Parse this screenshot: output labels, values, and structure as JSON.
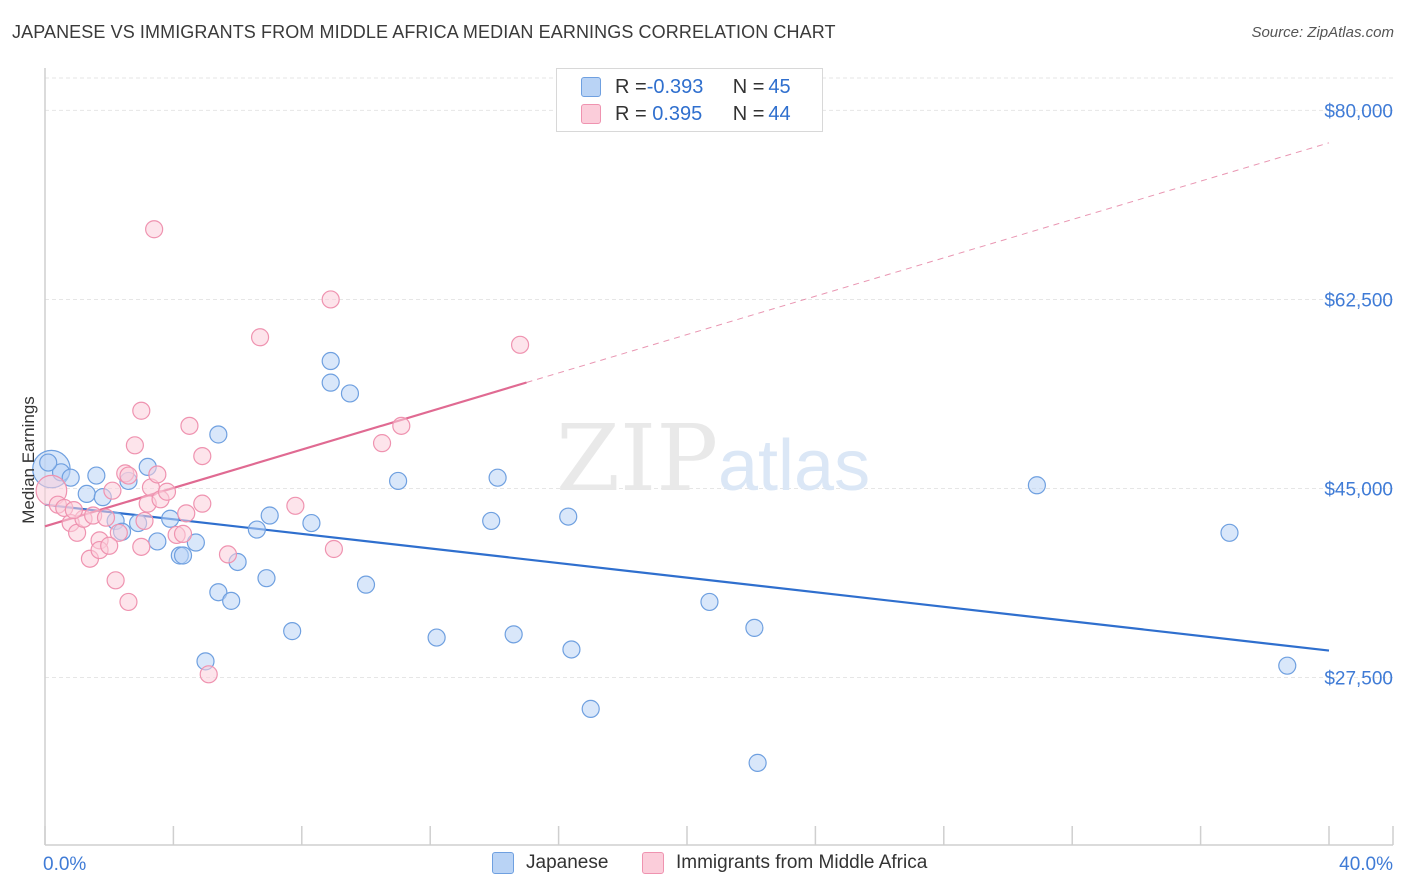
{
  "title": "JAPANESE VS IMMIGRANTS FROM MIDDLE AFRICA MEDIAN EARNINGS CORRELATION CHART",
  "source": "Source: ZipAtlas.com",
  "watermark": {
    "zip": "ZIP",
    "atlas": "atlas"
  },
  "colors": {
    "blue_fill": "#b9d3f5",
    "blue_stroke": "#6fa0e0",
    "blue_line": "#2f6fce",
    "pink_fill": "#fbcdda",
    "pink_stroke": "#ef93b0",
    "pink_line": "#e06a92",
    "axis_text": "#3f7bd6",
    "grid": "#e6e6e6"
  },
  "legend": {
    "rows": [
      {
        "r_label": "R = ",
        "r_value": "-0.393",
        "n_label": "N = ",
        "n_value": "45"
      },
      {
        "r_label": "R = ",
        "r_value": " 0.395",
        "n_label": "N = ",
        "n_value": "44"
      }
    ]
  },
  "bottom_legend": {
    "japanese": "Japanese",
    "immigrants": "Immigrants from Middle Africa"
  },
  "chart_data": {
    "type": "scatter",
    "ylabel": "Median Earnings",
    "xlim": [
      0,
      40
    ],
    "ylim": [
      12000,
      83000
    ],
    "x_tick_labels": {
      "left": "0.0%",
      "right": "40.0%"
    },
    "y_ticks": [
      {
        "value": 80000,
        "label": "$80,000"
      },
      {
        "value": 62500,
        "label": "$62,500"
      },
      {
        "value": 45000,
        "label": "$45,000"
      },
      {
        "value": 27500,
        "label": "$27,500"
      }
    ],
    "series": [
      {
        "name": "Japanese",
        "color": "#6fa0e0",
        "trend": {
          "x0": 0,
          "y0": 43500,
          "x1": 40,
          "y1": 30000,
          "dashed_from": null
        },
        "points": [
          [
            0.2,
            46800,
            2.2
          ],
          [
            0.5,
            46500,
            1
          ],
          [
            0.8,
            46000,
            1
          ],
          [
            1.3,
            44500,
            1
          ],
          [
            1.6,
            46200,
            1
          ],
          [
            1.8,
            44200,
            1
          ],
          [
            2.2,
            42000,
            1
          ],
          [
            2.4,
            41000,
            1
          ],
          [
            2.6,
            45700,
            1
          ],
          [
            2.9,
            41800,
            1
          ],
          [
            3.2,
            47000,
            1
          ],
          [
            3.5,
            40100,
            1
          ],
          [
            3.9,
            42200,
            1
          ],
          [
            4.2,
            38800,
            1
          ],
          [
            4.3,
            38800,
            1
          ],
          [
            4.7,
            40000,
            1
          ],
          [
            5.0,
            29000,
            1
          ],
          [
            5.4,
            35400,
            1
          ],
          [
            5.4,
            50000,
            1
          ],
          [
            5.8,
            34600,
            1
          ],
          [
            6.0,
            38200,
            1
          ],
          [
            6.6,
            41200,
            1
          ],
          [
            6.9,
            36700,
            1
          ],
          [
            7.0,
            42500,
            1
          ],
          [
            7.7,
            31800,
            1
          ],
          [
            8.3,
            41800,
            1
          ],
          [
            8.9,
            54800,
            1
          ],
          [
            8.9,
            56800,
            1
          ],
          [
            9.5,
            53800,
            1
          ],
          [
            10.0,
            36100,
            1
          ],
          [
            11.0,
            45700,
            1
          ],
          [
            12.2,
            31200,
            1
          ],
          [
            13.9,
            42000,
            1
          ],
          [
            14.1,
            46000,
            1
          ],
          [
            14.6,
            31500,
            1
          ],
          [
            16.3,
            42400,
            1
          ],
          [
            16.4,
            30100,
            1
          ],
          [
            17.0,
            24600,
            1
          ],
          [
            20.7,
            34500,
            1
          ],
          [
            22.1,
            32100,
            1
          ],
          [
            22.2,
            19600,
            1
          ],
          [
            30.9,
            45300,
            1
          ],
          [
            36.9,
            40900,
            1
          ],
          [
            38.7,
            28600,
            1
          ],
          [
            0.1,
            47400,
            1
          ]
        ]
      },
      {
        "name": "Immigrants from Middle Africa",
        "color": "#ef93b0",
        "trend": {
          "x0": 0,
          "y0": 41500,
          "x1": 40,
          "y1": 77000,
          "solid_to_x": 15
        },
        "points": [
          [
            0.2,
            44800,
            1.8
          ],
          [
            0.4,
            43500,
            1
          ],
          [
            0.6,
            43200,
            1
          ],
          [
            0.8,
            41800,
            1
          ],
          [
            1.0,
            40900,
            1
          ],
          [
            1.2,
            42200,
            1
          ],
          [
            1.4,
            38500,
            1
          ],
          [
            1.5,
            42500,
            1
          ],
          [
            1.7,
            40200,
            1
          ],
          [
            1.7,
            39300,
            1
          ],
          [
            2.1,
            44800,
            1
          ],
          [
            2.2,
            36500,
            1
          ],
          [
            2.3,
            40900,
            1
          ],
          [
            2.5,
            46400,
            1
          ],
          [
            2.6,
            46200,
            1
          ],
          [
            2.6,
            34500,
            1
          ],
          [
            2.8,
            49000,
            1
          ],
          [
            3.0,
            39600,
            1
          ],
          [
            3.0,
            52200,
            1
          ],
          [
            3.1,
            42000,
            1
          ],
          [
            3.2,
            43600,
            1
          ],
          [
            3.3,
            45100,
            1
          ],
          [
            3.4,
            69000,
            1
          ],
          [
            3.6,
            44000,
            1
          ],
          [
            3.8,
            44700,
            1
          ],
          [
            4.1,
            40700,
            1
          ],
          [
            4.3,
            40800,
            1
          ],
          [
            4.4,
            42700,
            1
          ],
          [
            4.5,
            50800,
            1
          ],
          [
            4.9,
            43600,
            1
          ],
          [
            4.9,
            48000,
            1
          ],
          [
            5.1,
            27800,
            1
          ],
          [
            5.7,
            38900,
            1
          ],
          [
            6.7,
            59000,
            1
          ],
          [
            7.8,
            43400,
            1
          ],
          [
            8.9,
            62500,
            1
          ],
          [
            9.0,
            39400,
            1
          ],
          [
            10.5,
            49200,
            1
          ],
          [
            11.1,
            50800,
            1
          ],
          [
            14.8,
            58300,
            1
          ],
          [
            0.9,
            43000,
            1
          ],
          [
            1.9,
            42300,
            1
          ],
          [
            3.5,
            46300,
            1
          ],
          [
            2.0,
            39700,
            1
          ]
        ]
      }
    ]
  }
}
